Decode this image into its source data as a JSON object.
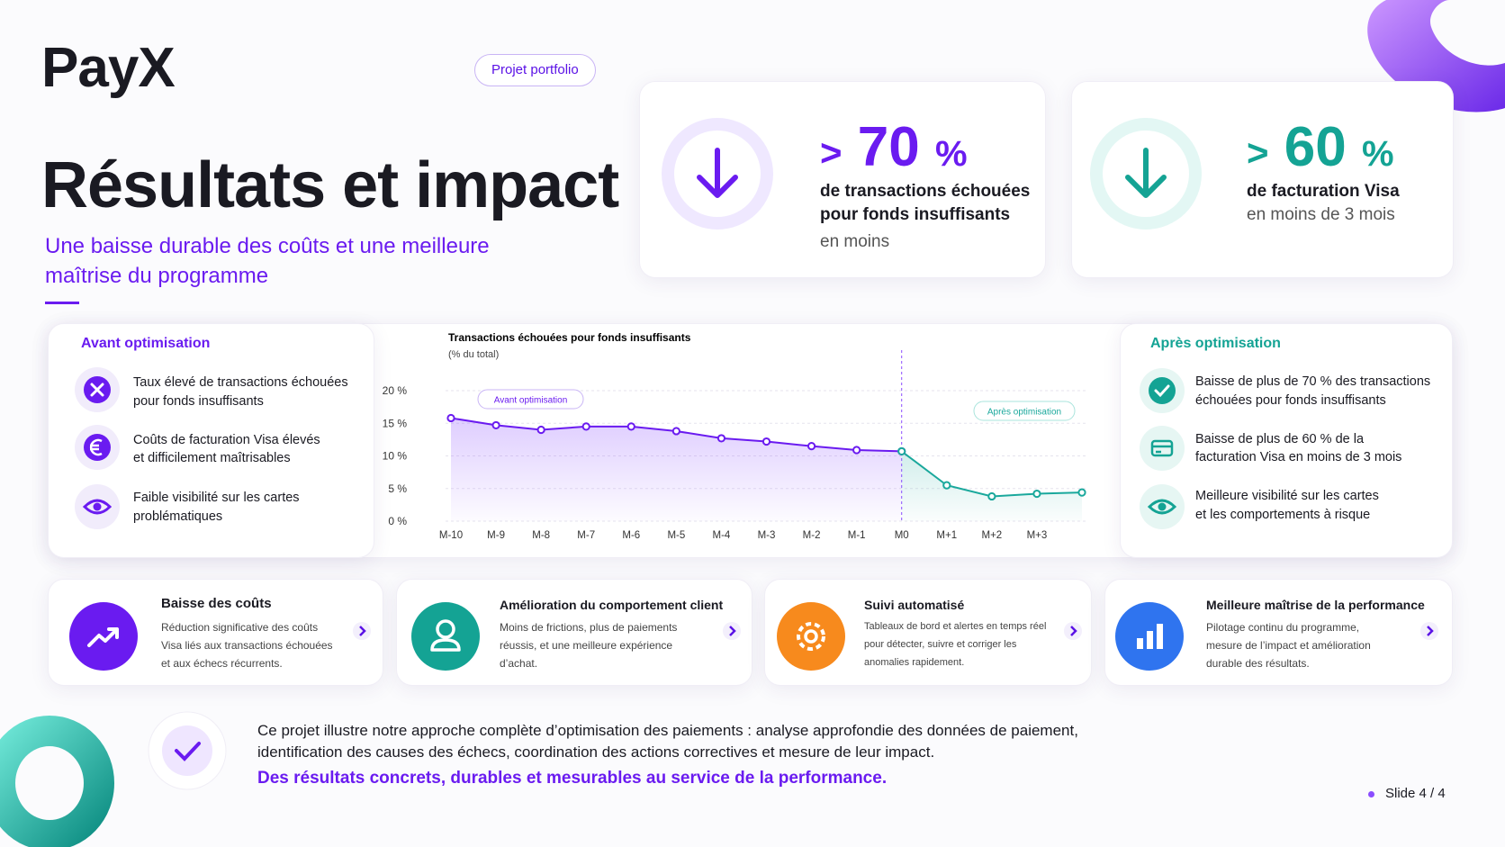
{
  "header": {
    "logo": "PayX",
    "badge": "Projet portfolio",
    "title": "Résultats et impact",
    "subtitle_lines": [
      "Une baisse durable des coûts et une meilleure",
      "maîtrise du programme"
    ]
  },
  "stats": [
    {
      "prefix": ">",
      "value": 70,
      "unit": "%",
      "lines": [
        "de transactions échouées",
        "pour fonds insuffisants"
      ],
      "note": "en moins"
    },
    {
      "prefix": ">",
      "value": 60,
      "unit": "%",
      "lines": [
        "de facturation Visa"
      ],
      "note": "en moins de 3 mois"
    }
  ],
  "before": {
    "title": "Avant optimisation",
    "items": [
      [
        "Taux élevé de transactions échouées",
        "pour fonds insuffisants"
      ],
      [
        "Coûts de facturation Visa élevés",
        "et difficilement maîtrisables"
      ],
      [
        "Faible visibilité sur les cartes",
        "problématiques"
      ]
    ]
  },
  "chart_data": {
    "type": "line",
    "title": "Transactions échouées pour fonds insuffisants",
    "subtitle": "(% du total)",
    "categories": [
      "M-10",
      "M-9",
      "M-8",
      "M-7",
      "M-6",
      "M-5",
      "M-4",
      "M-3",
      "M-2",
      "M-1",
      "M0",
      "M+1",
      "M+2",
      "M+3",
      null
    ],
    "series": [
      {
        "name": "Avant optimisation",
        "color": "#6a1bf0",
        "values": [
          15.8,
          14.7,
          14.0,
          14.5,
          14.5,
          13.8,
          12.7,
          12.2,
          11.5,
          10.9,
          10.7,
          null,
          null,
          null,
          null
        ]
      },
      {
        "name": "Après optimisation",
        "color": "#1aa89c",
        "values": [
          null,
          null,
          null,
          null,
          null,
          null,
          null,
          null,
          null,
          null,
          10.7,
          5.5,
          3.8,
          4.2,
          4.4
        ]
      }
    ],
    "ylim": [
      0,
      20
    ],
    "yticks": [
      {
        "value": 0,
        "label": "0 %"
      },
      {
        "value": 5,
        "label": "5 %"
      },
      {
        "value": 10,
        "label": "10 %"
      },
      {
        "value": 15,
        "label": "15 %"
      },
      {
        "value": 20,
        "label": "20 %"
      }
    ],
    "grid": true
  },
  "after": {
    "title": "Après optimisation",
    "items": [
      [
        "Baisse de plus de 70 % des transactions",
        "échouées pour fonds insuffisants"
      ],
      [
        "Baisse de plus de 60 % de la",
        "facturation Visa en moins de 3 mois"
      ],
      [
        "Meilleure visibilité sur les cartes",
        "et les comportements à risque"
      ]
    ]
  },
  "cards": [
    {
      "title": "Baisse des coûts",
      "lines": [
        "Réduction significative des coûts",
        "Visa liés aux transactions échouées",
        "et aux échecs récurrents."
      ]
    },
    {
      "title": "Amélioration du comportement client",
      "lines": [
        "Moins de frictions, plus de paiements",
        "réussis, et une meilleure expérience",
        "d’achat."
      ]
    },
    {
      "title": "Suivi automatisé",
      "lines": [
        "Tableaux de bord et alertes en temps réel",
        "pour détecter, suivre et corriger les",
        "anomalies rapidement."
      ]
    },
    {
      "title": "Meilleure maîtrise de la performance",
      "lines": [
        "Pilotage continu du programme,",
        "mesure de l’impact et amélioration",
        "durable des résultats."
      ]
    }
  ],
  "footer": {
    "lines": [
      "Ce projet illustre notre approche complète d’optimisation des paiements : analyse approfondie des données de paiement,",
      "identification des causes des échecs, coordination des actions correctives et mesure de leur impact."
    ],
    "highlight": "Des résultats concrets, durables et mesurables au service de la performance.",
    "slide": "Slide 4 / 4"
  }
}
